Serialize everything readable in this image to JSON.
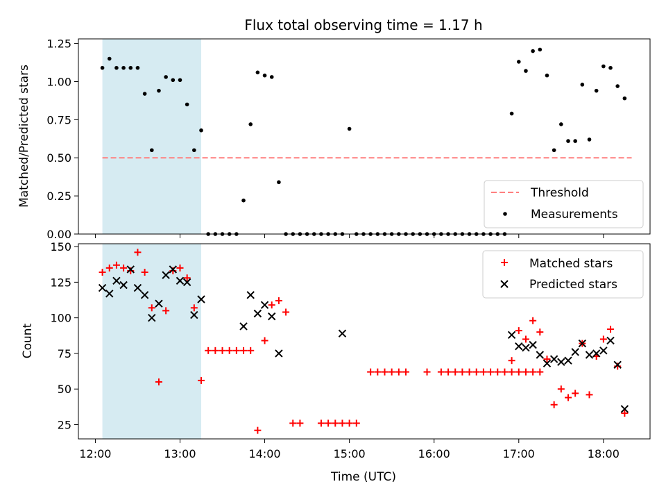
{
  "chart_data": [
    {
      "type": "scatter",
      "title": "Flux total observing time = 1.17 h",
      "xlabel": "",
      "ylabel": "Matched/Predicted stars",
      "ylim": [
        0,
        1.28
      ],
      "xlim": [
        11.8,
        18.55
      ],
      "yticks": [
        0,
        0.25,
        0.5,
        0.75,
        1.0,
        1.25
      ],
      "ytick_labels": [
        "0.00",
        "0.25",
        "0.50",
        "0.75",
        "1.00",
        "1.25"
      ],
      "grid": false,
      "legend": "bottom-right",
      "shaded_span": {
        "x_start": "12:05",
        "x_end": "13:15",
        "color": "#add8e6"
      },
      "threshold": {
        "name": "Threshold",
        "value": 0.5,
        "x_start": "12:05",
        "x_end": "18:20",
        "color": "#ff7f7f"
      },
      "series": [
        {
          "name": "Measurements",
          "color": "#000000",
          "x": [
            "12:05",
            "12:10",
            "12:15",
            "12:20",
            "12:25",
            "12:30",
            "12:35",
            "12:40",
            "12:45",
            "12:50",
            "12:55",
            "13:00",
            "13:05",
            "13:10",
            "13:15",
            "13:20",
            "13:25",
            "13:30",
            "13:35",
            "13:40",
            "13:45",
            "13:50",
            "13:55",
            "14:00",
            "14:05",
            "14:10",
            "14:15",
            "14:20",
            "14:25",
            "14:30",
            "14:35",
            "14:40",
            "14:45",
            "14:50",
            "14:55",
            "15:00",
            "15:05",
            "15:10",
            "15:15",
            "15:20",
            "15:25",
            "15:30",
            "15:35",
            "15:40",
            "15:45",
            "15:50",
            "15:55",
            "16:00",
            "16:05",
            "16:10",
            "16:15",
            "16:20",
            "16:25",
            "16:30",
            "16:35",
            "16:40",
            "16:45",
            "16:50",
            "16:55",
            "17:00",
            "17:05",
            "17:10",
            "17:15",
            "17:20",
            "17:25",
            "17:30",
            "17:35",
            "17:40",
            "17:45",
            "17:50",
            "17:55",
            "18:00",
            "18:05",
            "18:10",
            "18:15"
          ],
          "y": [
            1.09,
            1.15,
            1.09,
            1.09,
            1.09,
            1.09,
            0.92,
            0.55,
            0.94,
            1.03,
            1.01,
            1.01,
            0.85,
            0.55,
            0.68,
            0,
            0,
            0,
            0,
            0,
            0.22,
            0.72,
            1.06,
            1.04,
            1.03,
            0.34,
            0,
            0,
            0,
            0,
            0,
            0,
            0,
            0,
            0,
            0.69,
            0,
            0,
            0,
            0,
            0,
            0,
            0,
            0,
            0,
            0,
            0,
            0,
            0,
            0,
            0,
            0,
            0,
            0,
            0,
            0,
            0,
            0,
            0.79,
            1.13,
            1.07,
            1.2,
            1.21,
            1.04,
            0.55,
            0.72,
            0.61,
            0.61,
            0.98,
            0.62,
            0.94,
            1.1,
            1.09,
            0.97,
            0.89
          ]
        }
      ]
    },
    {
      "type": "scatter",
      "title": "",
      "xlabel": "Time (UTC)",
      "ylabel": "Count",
      "ylim": [
        15,
        152
      ],
      "xlim": [
        11.8,
        18.55
      ],
      "yticks": [
        25,
        50,
        75,
        100,
        125,
        150
      ],
      "ytick_labels": [
        "25",
        "50",
        "75",
        "100",
        "125",
        "150"
      ],
      "xticks": [
        "12:00",
        "13:00",
        "14:00",
        "15:00",
        "16:00",
        "17:00",
        "18:00"
      ],
      "grid": false,
      "legend": "top-right",
      "shaded_span": {
        "x_start": "12:05",
        "x_end": "13:15",
        "color": "#add8e6"
      },
      "series": [
        {
          "name": "Matched stars",
          "marker": "+",
          "color": "#ff0000",
          "points": [
            [
              "12:05",
              132
            ],
            [
              "12:10",
              135
            ],
            [
              "12:15",
              137
            ],
            [
              "12:20",
              135
            ],
            [
              "12:25",
              133
            ],
            [
              "12:30",
              146
            ],
            [
              "12:35",
              132
            ],
            [
              "12:40",
              107
            ],
            [
              "12:45",
              55
            ],
            [
              "12:50",
              105
            ],
            [
              "12:55",
              133
            ],
            [
              "13:00",
              135
            ],
            [
              "13:05",
              128
            ],
            [
              "13:10",
              107
            ],
            [
              "13:15",
              56
            ],
            [
              "13:20",
              77
            ],
            [
              "13:25",
              77
            ],
            [
              "13:30",
              77
            ],
            [
              "13:35",
              77
            ],
            [
              "13:40",
              77
            ],
            [
              "13:45",
              77
            ],
            [
              "13:50",
              77
            ],
            [
              "13:55",
              21
            ],
            [
              "14:00",
              84
            ],
            [
              "14:05",
              109
            ],
            [
              "14:10",
              112
            ],
            [
              "14:15",
              104
            ],
            [
              "14:20",
              26
            ],
            [
              "14:25",
              26
            ],
            [
              "14:40",
              26
            ],
            [
              "14:45",
              26
            ],
            [
              "14:50",
              26
            ],
            [
              "14:55",
              26
            ],
            [
              "15:00",
              26
            ],
            [
              "15:05",
              26
            ],
            [
              "15:15",
              62
            ],
            [
              "15:20",
              62
            ],
            [
              "15:25",
              62
            ],
            [
              "15:30",
              62
            ],
            [
              "15:35",
              62
            ],
            [
              "15:40",
              62
            ],
            [
              "15:55",
              62
            ],
            [
              "16:05",
              62
            ],
            [
              "16:10",
              62
            ],
            [
              "16:15",
              62
            ],
            [
              "16:20",
              62
            ],
            [
              "16:25",
              62
            ],
            [
              "16:30",
              62
            ],
            [
              "16:35",
              62
            ],
            [
              "16:40",
              62
            ],
            [
              "16:45",
              62
            ],
            [
              "16:50",
              62
            ],
            [
              "16:55",
              62
            ],
            [
              "17:00",
              62
            ],
            [
              "17:05",
              62
            ],
            [
              "17:10",
              62
            ],
            [
              "17:15",
              62
            ],
            [
              "16:55",
              70
            ],
            [
              "17:00",
              91
            ],
            [
              "17:05",
              85
            ],
            [
              "17:10",
              98
            ],
            [
              "17:15",
              90
            ],
            [
              "17:20",
              71
            ],
            [
              "17:25",
              39
            ],
            [
              "17:30",
              50
            ],
            [
              "17:35",
              44
            ],
            [
              "17:40",
              47
            ],
            [
              "17:45",
              82
            ],
            [
              "17:50",
              46
            ],
            [
              "17:55",
              73
            ],
            [
              "18:00",
              85
            ],
            [
              "18:05",
              92
            ],
            [
              "18:10",
              66
            ],
            [
              "18:15",
              33
            ]
          ]
        },
        {
          "name": "Predicted stars",
          "marker": "x",
          "color": "#000000",
          "points": [
            [
              "12:05",
              121
            ],
            [
              "12:10",
              117
            ],
            [
              "12:15",
              126
            ],
            [
              "12:20",
              123
            ],
            [
              "12:25",
              134
            ],
            [
              "12:30",
              121
            ],
            [
              "12:35",
              116
            ],
            [
              "12:40",
              100
            ],
            [
              "12:45",
              110
            ],
            [
              "12:50",
              130
            ],
            [
              "12:55",
              134
            ],
            [
              "13:00",
              126
            ],
            [
              "13:05",
              125
            ],
            [
              "13:10",
              102
            ],
            [
              "13:15",
              113
            ],
            [
              "13:45",
              94
            ],
            [
              "13:50",
              116
            ],
            [
              "13:55",
              103
            ],
            [
              "14:00",
              109
            ],
            [
              "14:05",
              101
            ],
            [
              "14:10",
              75
            ],
            [
              "14:55",
              89
            ],
            [
              "16:55",
              88
            ],
            [
              "17:00",
              80
            ],
            [
              "17:05",
              79
            ],
            [
              "17:10",
              81
            ],
            [
              "17:15",
              74
            ],
            [
              "17:20",
              68
            ],
            [
              "17:25",
              71
            ],
            [
              "17:30",
              69
            ],
            [
              "17:35",
              70
            ],
            [
              "17:40",
              76
            ],
            [
              "17:45",
              82
            ],
            [
              "17:50",
              74
            ],
            [
              "17:55",
              75
            ],
            [
              "18:00",
              77
            ],
            [
              "18:05",
              84
            ],
            [
              "18:10",
              67
            ],
            [
              "18:15",
              36
            ]
          ]
        }
      ]
    }
  ]
}
